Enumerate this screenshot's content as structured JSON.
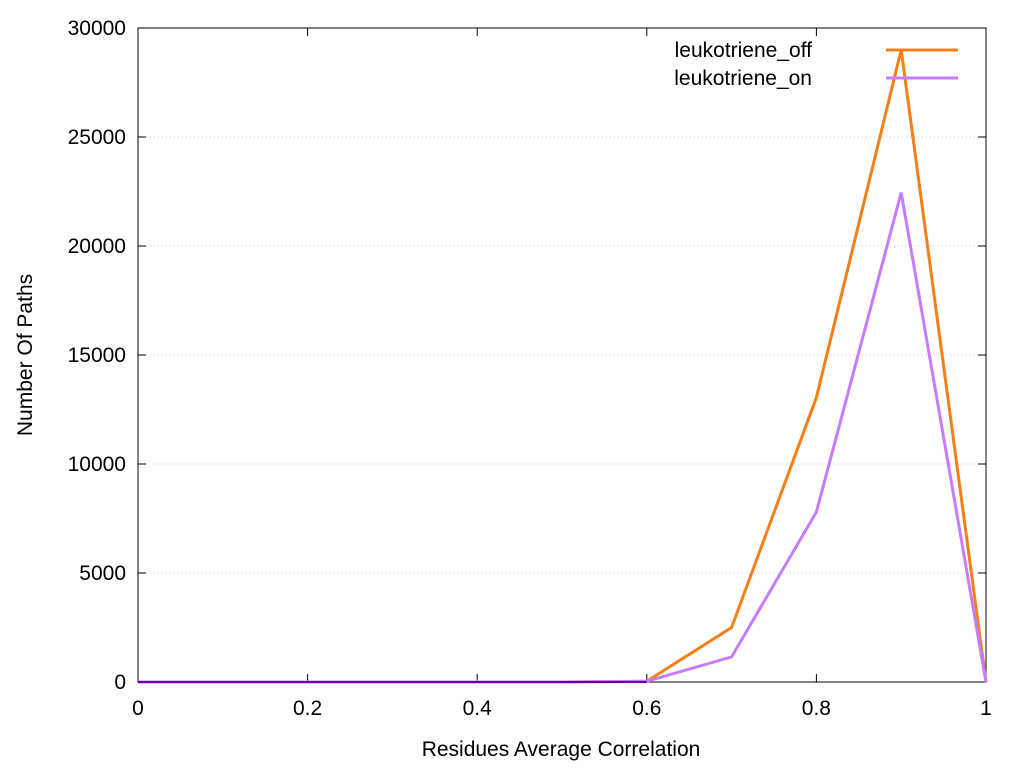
{
  "chart_data": {
    "type": "line",
    "title": "",
    "xlabel": "Residues Average Correlation",
    "ylabel": "Number Of Paths",
    "xlim": [
      0,
      1
    ],
    "ylim": [
      0,
      30000
    ],
    "x_ticks": [
      0,
      0.2,
      0.4,
      0.6,
      0.8,
      1
    ],
    "x_tick_labels": [
      "0",
      "0.2",
      "0.4",
      "0.6",
      "0.8",
      "1"
    ],
    "y_ticks": [
      0,
      5000,
      10000,
      15000,
      20000,
      25000,
      30000
    ],
    "y_tick_labels": [
      "0",
      "5000",
      "10000",
      "15000",
      "20000",
      "25000",
      "30000"
    ],
    "grid": "horizontal dotted",
    "legend_position": "top-right",
    "x": [
      0,
      0.1,
      0.2,
      0.3,
      0.4,
      0.5,
      0.6,
      0.7,
      0.8,
      0.9,
      1.0
    ],
    "series": [
      {
        "name": "leukotriene_off",
        "color": "#f57f17",
        "values": [
          0,
          0,
          0,
          0,
          0,
          0,
          30,
          2500,
          13050,
          29000,
          0
        ]
      },
      {
        "name": "leukotriene_on",
        "color": "#c77cff",
        "values": [
          0,
          0,
          0,
          0,
          0,
          0,
          30,
          1150,
          7800,
          22450,
          0
        ]
      }
    ],
    "baseline_color": "#6a00a8"
  }
}
